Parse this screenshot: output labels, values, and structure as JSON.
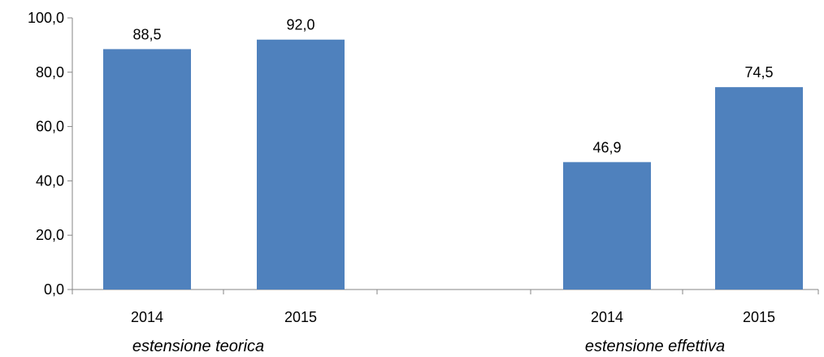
{
  "chart_data": {
    "type": "bar",
    "groups": [
      {
        "name": "estensione teorica",
        "categories": [
          "2014",
          "2015"
        ],
        "values": [
          88.5,
          92.0
        ],
        "value_labels": [
          "88,5",
          "92,0"
        ]
      },
      {
        "name": "estensione effettiva",
        "categories": [
          "2014",
          "2015"
        ],
        "values": [
          46.9,
          74.5
        ],
        "value_labels": [
          "46,9",
          "74,5"
        ]
      }
    ],
    "ylim": [
      0,
      100
    ],
    "yticks": [
      0,
      20,
      40,
      60,
      80,
      100
    ],
    "ytick_labels": [
      "0,0",
      "20,0",
      "40,0",
      "60,0",
      "80,0",
      "100,0"
    ],
    "grid": false,
    "bar_color": "#4F81BD",
    "axis_color": "#868686"
  }
}
